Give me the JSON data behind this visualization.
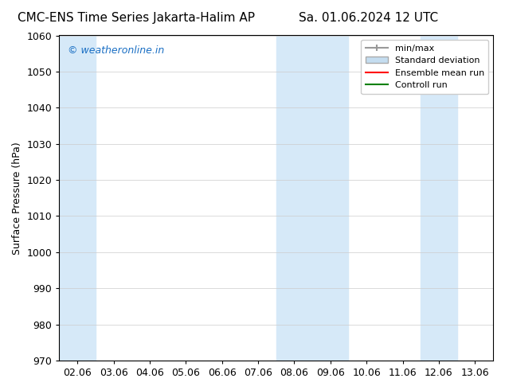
{
  "title_left": "CMC-ENS Time Series Jakarta-Halim AP",
  "title_right": "Sa. 01.06.2024 12 UTC",
  "ylabel": "Surface Pressure (hPa)",
  "ylim": [
    970,
    1060
  ],
  "yticks": [
    970,
    980,
    990,
    1000,
    1010,
    1020,
    1030,
    1040,
    1050,
    1060
  ],
  "x_labels": [
    "02.06",
    "03.06",
    "04.06",
    "05.06",
    "06.06",
    "07.06",
    "08.06",
    "09.06",
    "10.06",
    "11.06",
    "12.06",
    "13.06"
  ],
  "x_values": [
    0,
    1,
    2,
    3,
    4,
    5,
    6,
    7,
    8,
    9,
    10,
    11
  ],
  "shaded_bands": [
    {
      "xmin": 0,
      "xmax": 1,
      "color": "#d6e9f8"
    },
    {
      "xmin": 6,
      "xmax": 8,
      "color": "#d6e9f8"
    },
    {
      "xmin": 10,
      "xmax": 11,
      "color": "#d6e9f8"
    }
  ],
  "watermark_text": "© weatheronline.in",
  "watermark_color": "#1a6fc4",
  "legend_items": [
    {
      "label": "min/max",
      "color": "#aaaaaa",
      "type": "errorbar"
    },
    {
      "label": "Standard deviation",
      "color": "#c5ddf0",
      "type": "fill"
    },
    {
      "label": "Ensemble mean run",
      "color": "red",
      "type": "line"
    },
    {
      "label": "Controll run",
      "color": "green",
      "type": "line"
    }
  ],
  "background_color": "#ffffff",
  "plot_bg_color": "#ffffff",
  "border_color": "#000000",
  "grid_color": "#cccccc",
  "font_size_title": 11,
  "font_size_ticks": 9,
  "font_size_ylabel": 9,
  "font_size_legend": 8,
  "font_size_watermark": 9
}
